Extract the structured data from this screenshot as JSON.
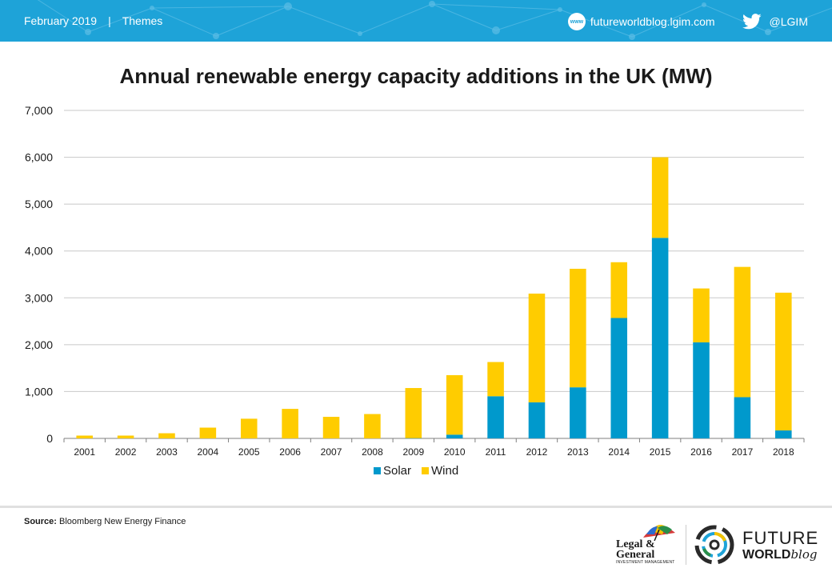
{
  "header": {
    "date": "February 2019",
    "separator": "|",
    "section": "Themes",
    "www_label": "www",
    "website": "futureworldblog.lgim.com",
    "twitter_handle": "@LGIM"
  },
  "chart_data": {
    "type": "bar",
    "stacked": true,
    "title": "Annual renewable energy capacity additions in the UK (MW)",
    "xlabel": "",
    "ylabel": "",
    "categories": [
      "2001",
      "2002",
      "2003",
      "2004",
      "2005",
      "2006",
      "2007",
      "2008",
      "2009",
      "2010",
      "2011",
      "2012",
      "2013",
      "2014",
      "2015",
      "2016",
      "2017",
      "2018"
    ],
    "series": [
      {
        "name": "Solar",
        "color": "#0099cc",
        "values": [
          0,
          0,
          0,
          0,
          0,
          0,
          0,
          0,
          5,
          80,
          900,
          770,
          1090,
          2570,
          4280,
          2050,
          880,
          170
        ]
      },
      {
        "name": "Wind",
        "color": "#ffcc00",
        "values": [
          60,
          60,
          110,
          230,
          420,
          630,
          460,
          520,
          1070,
          1270,
          730,
          2320,
          2530,
          1190,
          1720,
          1150,
          2780,
          2940
        ]
      }
    ],
    "ylim": [
      0,
      7000
    ],
    "yticks": [
      0,
      1000,
      2000,
      3000,
      4000,
      5000,
      6000,
      7000
    ],
    "ytick_labels": [
      "0",
      "1,000",
      "2,000",
      "3,000",
      "4,000",
      "5,000",
      "6,000",
      "7,000"
    ],
    "grid": true,
    "legend_position": "bottom"
  },
  "footer": {
    "source_label": "Source:",
    "source_text": "Bloomberg New Energy Finance",
    "lg_logo_line1": "Legal &",
    "lg_logo_line2": "General",
    "lg_logo_sub": "INVESTMENT MANAGEMENT",
    "fw_logo_line1": "FUTURE",
    "fw_logo_line2": "WORLD",
    "fw_logo_line3": "blog"
  }
}
